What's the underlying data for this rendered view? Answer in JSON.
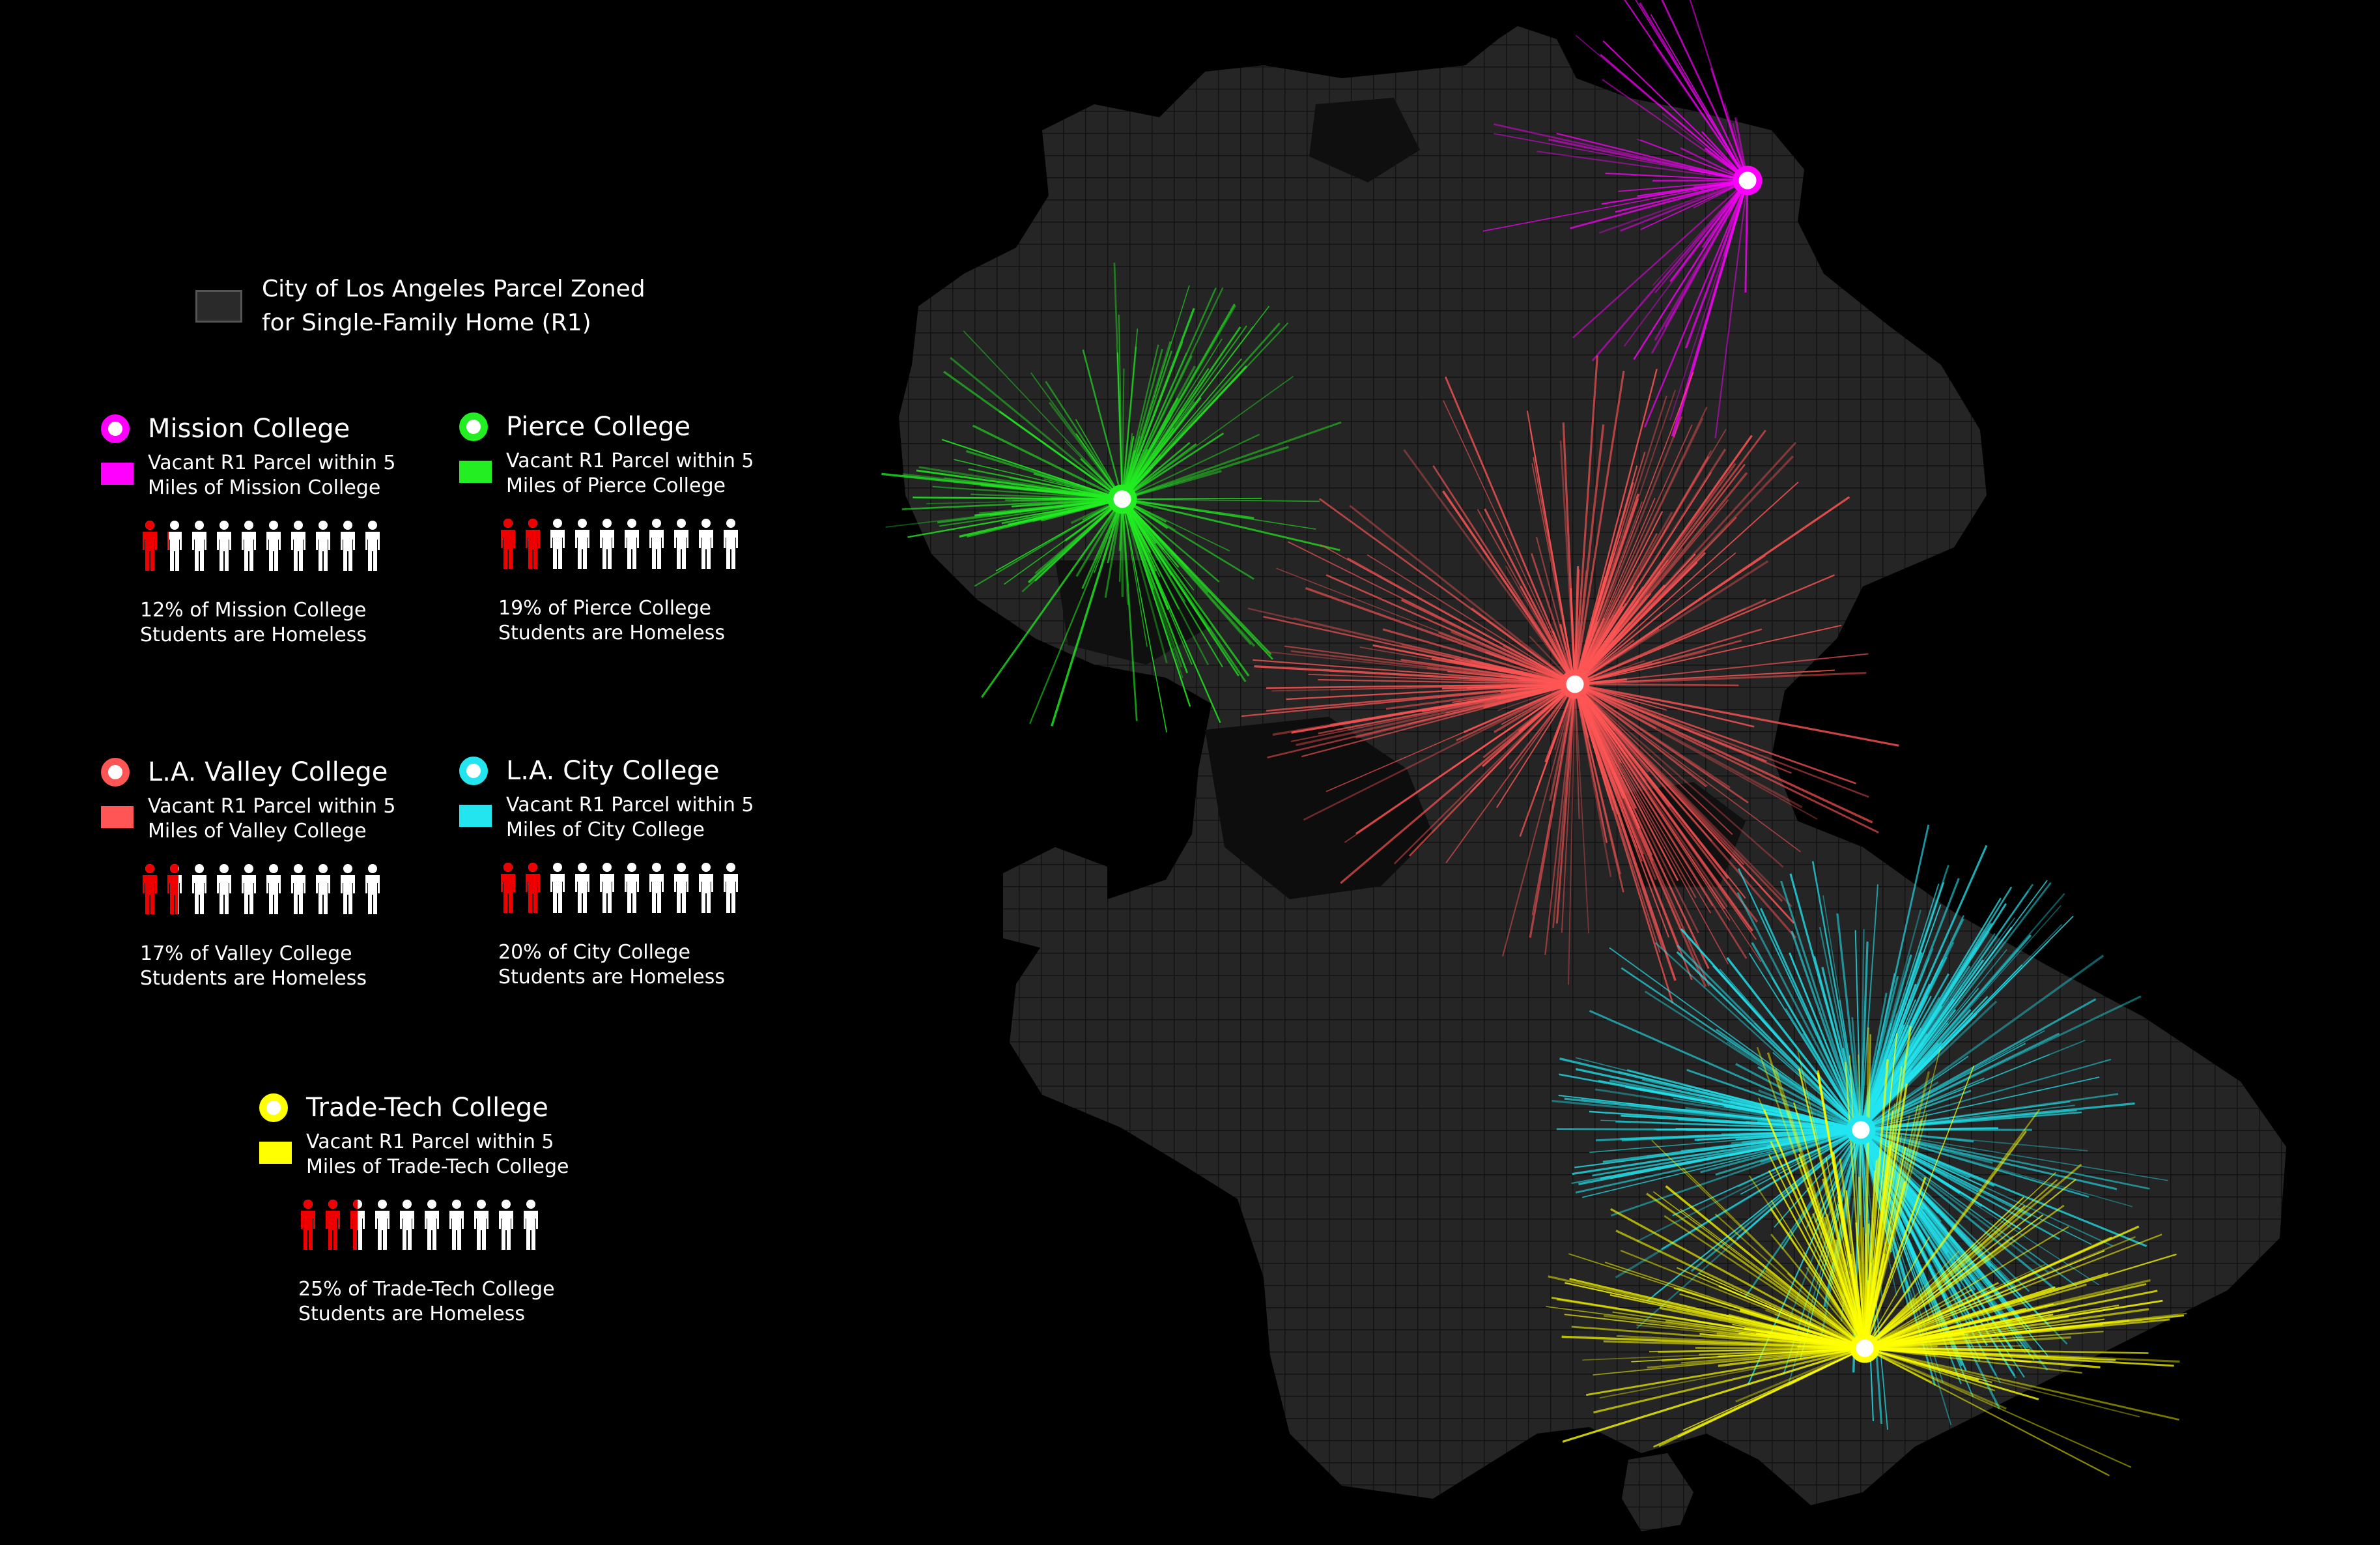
{
  "legend": {
    "base_line1": "City of Los Angeles Parcel Zoned",
    "base_line2": "for Single-Family Home (R1)",
    "base_color": "#2b2b2b"
  },
  "colleges": {
    "mission": {
      "name": "Mission College",
      "color": "#ff00ff",
      "parcel_line1": "Vacant R1 Parcel within 5",
      "parcel_line2": "Miles of Mission College",
      "stat_line1": "12% of Mission College",
      "stat_line2": "Students are Homeless",
      "homeless_fraction": 0.12
    },
    "pierce": {
      "name": "Pierce College",
      "color": "#22ee22",
      "parcel_line1": "Vacant R1 Parcel within 5",
      "parcel_line2": "Miles of Pierce College",
      "stat_line1": "19% of Pierce College",
      "stat_line2": "Students are Homeless",
      "homeless_fraction": 0.19
    },
    "valley": {
      "name": "L.A. Valley College",
      "color": "#ff5555",
      "parcel_line1": "Vacant R1 Parcel within 5",
      "parcel_line2": "Miles of Valley College",
      "stat_line1": "17% of Valley College",
      "stat_line2": "Students are Homeless",
      "homeless_fraction": 0.17
    },
    "city": {
      "name": "L.A. City College",
      "color": "#22e5f0",
      "parcel_line1": "Vacant R1 Parcel within 5",
      "parcel_line2": "Miles of City College",
      "stat_line1": "20% of City College",
      "stat_line2": "Students are Homeless",
      "homeless_fraction": 0.2
    },
    "tradetech": {
      "name": "Trade-Tech College",
      "color": "#ffff00",
      "parcel_line1": "Vacant R1 Parcel within 5",
      "parcel_line2": "Miles of Trade-Tech College",
      "stat_line1": "25% of Trade-Tech College",
      "stat_line2": "Students are Homeless",
      "homeless_fraction": 0.25
    }
  },
  "icon_homeless_color": "#ee0000",
  "icon_housed_color": "#ffffff",
  "icons_per_row": 10
}
